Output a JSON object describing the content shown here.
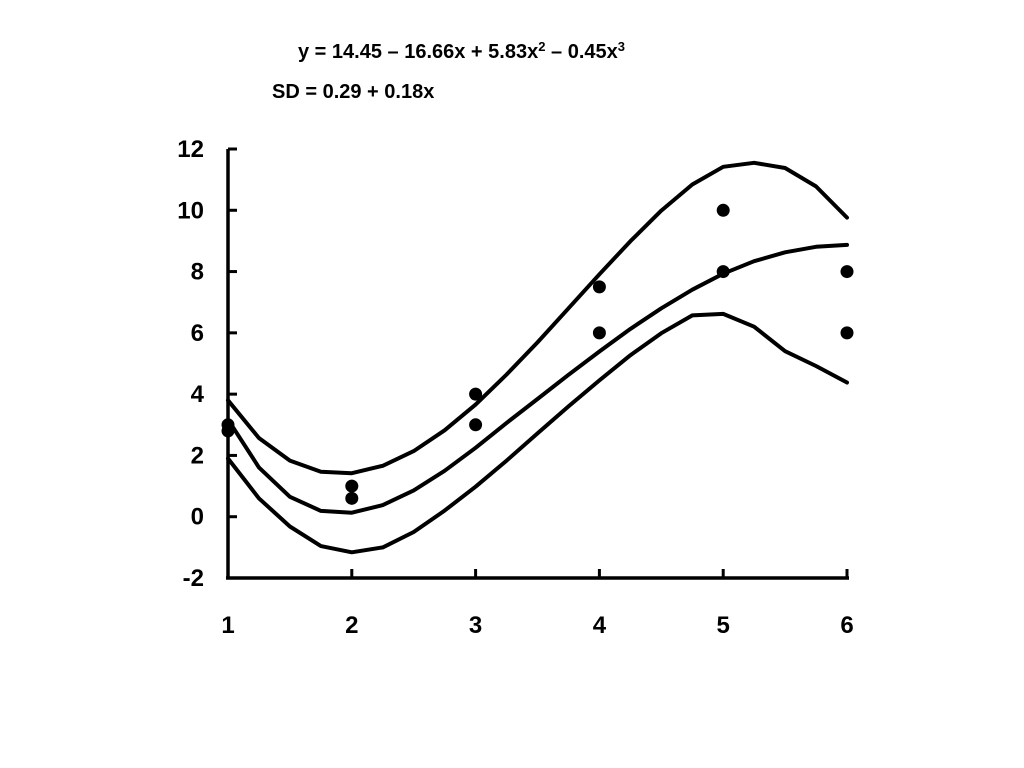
{
  "equations": {
    "fit": {
      "prefix": "y = 14.45 – 16.66x + 5.83x",
      "exp1": "2",
      "mid": " – 0.45x",
      "exp2": "3"
    },
    "sd": "SD = 0.29 + 0.18x"
  },
  "chart_data": {
    "type": "scatter",
    "title": "",
    "xlabel": "",
    "ylabel": "",
    "xlim": [
      1,
      6
    ],
    "ylim": [
      -2,
      12
    ],
    "x_ticks": [
      "1",
      "2",
      "3",
      "4",
      "5",
      "6"
    ],
    "y_ticks": [
      "-2",
      "0",
      "2",
      "4",
      "6",
      "8",
      "10",
      "12"
    ],
    "grid": false,
    "legend": "none",
    "points": {
      "x": [
        1,
        1,
        2,
        2,
        3,
        3,
        4,
        4,
        5,
        5,
        6,
        6
      ],
      "y": [
        3.0,
        2.8,
        1.0,
        0.6,
        4.0,
        3.0,
        7.5,
        6.0,
        10.0,
        8.0,
        8.0,
        6.0
      ]
    },
    "curves": {
      "x": [
        1.0,
        1.25,
        1.5,
        1.75,
        2.0,
        2.25,
        2.5,
        2.75,
        3.0,
        3.25,
        3.5,
        3.75,
        4.0,
        4.25,
        4.5,
        4.75,
        5.0,
        5.25,
        5.5,
        5.75,
        6.0
      ],
      "series": [
        {
          "role": "upper",
          "values": [
            3.8,
            2.57,
            1.83,
            1.47,
            1.42,
            1.66,
            2.14,
            2.82,
            3.66,
            4.64,
            5.69,
            6.8,
            7.91,
            8.99,
            9.99,
            10.84,
            11.42,
            11.55,
            11.38,
            10.78,
            9.76
          ]
        },
        {
          "role": "fit",
          "values": [
            3.17,
            1.61,
            0.65,
            0.19,
            0.13,
            0.38,
            0.86,
            1.5,
            2.25,
            3.06,
            3.84,
            4.63,
            5.39,
            6.13,
            6.8,
            7.41,
            7.93,
            8.34,
            8.63,
            8.81,
            8.87
          ]
        },
        {
          "role": "lower",
          "values": [
            1.9,
            0.6,
            -0.32,
            -0.96,
            -1.16,
            -1.0,
            -0.5,
            0.2,
            0.98,
            1.83,
            2.72,
            3.6,
            4.45,
            5.27,
            5.99,
            6.57,
            6.62,
            6.2,
            5.4,
            4.92,
            4.38
          ]
        }
      ]
    }
  }
}
